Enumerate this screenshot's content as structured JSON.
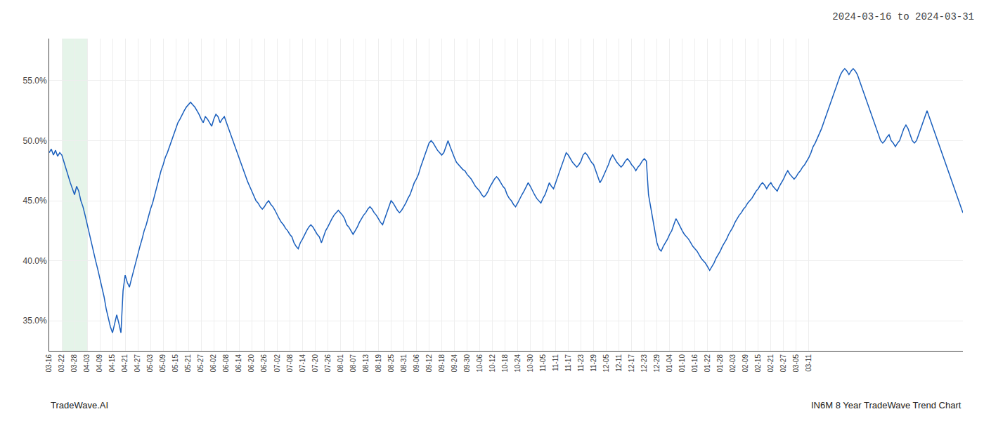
{
  "chart_data": {
    "type": "line",
    "title": "2024-03-16 to 2024-03-31",
    "annotations": [
      "TradeWave.AI",
      "IN6M 8 Year TradeWave Trend Chart"
    ],
    "categories": [
      "03-16",
      null,
      null,
      null,
      null,
      null,
      "03-22",
      null,
      null,
      null,
      null,
      null,
      "03-28",
      null,
      null,
      null,
      null,
      null,
      "04-03",
      null,
      null,
      null,
      null,
      null,
      "04-09",
      null,
      null,
      null,
      null,
      null,
      "04-15",
      null,
      null,
      null,
      null,
      null,
      "04-21",
      null,
      null,
      null,
      null,
      null,
      "04-27",
      null,
      null,
      null,
      null,
      null,
      "05-03",
      null,
      null,
      null,
      null,
      null,
      "05-09",
      null,
      null,
      null,
      null,
      null,
      "05-15",
      null,
      null,
      null,
      null,
      null,
      "05-21",
      null,
      null,
      null,
      null,
      null,
      "05-27",
      null,
      null,
      null,
      null,
      null,
      "06-02",
      null,
      null,
      null,
      null,
      null,
      "06-08",
      null,
      null,
      null,
      null,
      null,
      "06-14",
      null,
      null,
      null,
      null,
      null,
      "06-20",
      null,
      null,
      null,
      null,
      null,
      "06-26",
      null,
      null,
      null,
      null,
      null,
      "07-02",
      null,
      null,
      null,
      null,
      null,
      "07-08",
      null,
      null,
      null,
      null,
      null,
      "07-14",
      null,
      null,
      null,
      null,
      null,
      "07-20",
      null,
      null,
      null,
      null,
      null,
      "07-26",
      null,
      null,
      null,
      null,
      null,
      "08-01",
      null,
      null,
      null,
      null,
      null,
      "08-07",
      null,
      null,
      null,
      null,
      null,
      "08-13",
      null,
      null,
      null,
      null,
      null,
      "08-19",
      null,
      null,
      null,
      null,
      null,
      "08-25",
      null,
      null,
      null,
      null,
      null,
      "08-31",
      null,
      null,
      null,
      null,
      null,
      "09-06",
      null,
      null,
      null,
      null,
      null,
      "09-12",
      null,
      null,
      null,
      null,
      null,
      "09-18",
      null,
      null,
      null,
      null,
      null,
      "09-24",
      null,
      null,
      null,
      null,
      null,
      "09-30",
      null,
      null,
      null,
      null,
      null,
      "10-06",
      null,
      null,
      null,
      null,
      null,
      "10-12",
      null,
      null,
      null,
      null,
      null,
      "10-18",
      null,
      null,
      null,
      null,
      null,
      "10-24",
      null,
      null,
      null,
      null,
      null,
      "10-30",
      null,
      null,
      null,
      null,
      null,
      "11-05",
      null,
      null,
      null,
      null,
      null,
      "11-11",
      null,
      null,
      null,
      null,
      null,
      "11-17",
      null,
      null,
      null,
      null,
      null,
      "11-23",
      null,
      null,
      null,
      null,
      null,
      "11-29",
      null,
      null,
      null,
      null,
      null,
      "12-05",
      null,
      null,
      null,
      null,
      null,
      "12-11",
      null,
      null,
      null,
      null,
      null,
      "12-17",
      null,
      null,
      null,
      null,
      null,
      "12-23",
      null,
      null,
      null,
      null,
      null,
      "12-29",
      null,
      null,
      null,
      null,
      null,
      "01-04",
      null,
      null,
      null,
      null,
      null,
      "01-10",
      null,
      null,
      null,
      null,
      null,
      "01-16",
      null,
      null,
      null,
      null,
      null,
      "01-22",
      null,
      null,
      null,
      null,
      null,
      "01-28",
      null,
      null,
      null,
      null,
      null,
      "02-03",
      null,
      null,
      null,
      null,
      null,
      "02-09",
      null,
      null,
      null,
      null,
      null,
      "02-15",
      null,
      null,
      null,
      null,
      null,
      "02-21",
      null,
      null,
      null,
      null,
      null,
      "02-27",
      null,
      null,
      null,
      null,
      null,
      "03-05",
      null,
      null,
      null,
      null,
      null,
      "03-11",
      null,
      null,
      null,
      null,
      null,
      null,
      null,
      null,
      null,
      null,
      null,
      null,
      null,
      null,
      null,
      null,
      null,
      null,
      null,
      null,
      null,
      null,
      null,
      null,
      null,
      null,
      null,
      null,
      null,
      null,
      null,
      null,
      null,
      null,
      null,
      null,
      null,
      null,
      null,
      null,
      null,
      null,
      null,
      null,
      null,
      null,
      null,
      null,
      null,
      null,
      null,
      null,
      null,
      null,
      null,
      null,
      null,
      null,
      null,
      null,
      null,
      null,
      null,
      null,
      null,
      null,
      null,
      null,
      null,
      null,
      null,
      null,
      null
    ],
    "values": [
      0.49,
      0.493,
      0.488,
      0.492,
      0.487,
      0.49,
      0.488,
      0.482,
      0.476,
      0.471,
      0.465,
      0.46,
      0.455,
      0.462,
      0.458,
      0.45,
      0.445,
      0.438,
      0.43,
      0.422,
      0.415,
      0.408,
      0.4,
      0.393,
      0.385,
      0.378,
      0.37,
      0.36,
      0.352,
      0.345,
      0.34,
      0.348,
      0.355,
      0.348,
      0.34,
      0.375,
      0.388,
      0.382,
      0.378,
      0.385,
      0.392,
      0.398,
      0.405,
      0.412,
      0.418,
      0.425,
      0.43,
      0.437,
      0.443,
      0.448,
      0.455,
      0.462,
      0.468,
      0.475,
      0.48,
      0.486,
      0.49,
      0.495,
      0.5,
      0.505,
      0.51,
      0.515,
      0.518,
      0.522,
      0.525,
      0.528,
      0.53,
      0.532,
      0.53,
      0.528,
      0.525,
      0.522,
      0.518,
      0.515,
      0.52,
      0.518,
      0.515,
      0.512,
      0.518,
      0.522,
      0.52,
      0.515,
      0.518,
      0.52,
      0.515,
      0.51,
      0.505,
      0.5,
      0.495,
      0.49,
      0.485,
      0.48,
      0.476,
      0.47,
      0.466,
      0.462,
      0.458,
      0.455,
      0.45,
      0.448,
      0.445,
      0.443,
      0.445,
      0.448,
      0.45,
      0.447,
      0.445,
      0.442,
      0.438,
      0.435,
      0.432,
      0.43,
      0.427,
      0.425,
      0.422,
      0.42,
      0.415,
      0.412,
      0.41,
      0.415,
      0.418,
      0.422,
      0.425,
      0.428,
      0.43,
      0.428,
      0.425,
      0.422,
      0.42,
      0.415,
      0.42,
      0.425,
      0.428,
      0.432,
      0.435,
      0.438,
      0.44,
      0.442,
      0.44,
      0.438,
      0.435,
      0.43,
      0.428,
      0.425,
      0.422,
      0.425,
      0.428,
      0.432,
      0.435,
      0.438,
      0.44,
      0.443,
      0.445,
      0.443,
      0.44,
      0.438,
      0.435,
      0.432,
      0.43,
      0.435,
      0.44,
      0.445,
      0.45,
      0.448,
      0.445,
      0.442,
      0.44,
      0.442,
      0.445,
      0.448,
      0.452,
      0.455,
      0.46,
      0.465,
      0.468,
      0.472,
      0.478,
      0.483,
      0.488,
      0.492,
      0.498,
      0.5,
      0.498,
      0.495,
      0.492,
      0.49,
      0.488,
      0.49,
      0.495,
      0.5,
      0.495,
      0.49,
      0.486,
      0.482,
      0.48,
      0.478,
      0.476,
      0.475,
      0.472,
      0.47,
      0.468,
      0.465,
      0.462,
      0.46,
      0.458,
      0.455,
      0.453,
      0.455,
      0.458,
      0.462,
      0.465,
      0.468,
      0.47,
      0.468,
      0.465,
      0.462,
      0.46,
      0.455,
      0.452,
      0.45,
      0.447,
      0.445,
      0.448,
      0.452,
      0.455,
      0.458,
      0.462,
      0.465,
      0.462,
      0.458,
      0.455,
      0.452,
      0.45,
      0.448,
      0.452,
      0.455,
      0.46,
      0.465,
      0.462,
      0.46,
      0.465,
      0.47,
      0.475,
      0.48,
      0.485,
      0.49,
      0.488,
      0.485,
      0.482,
      0.48,
      0.478,
      0.48,
      0.483,
      0.488,
      0.49,
      0.488,
      0.485,
      0.482,
      0.48,
      0.475,
      0.47,
      0.465,
      0.468,
      0.472,
      0.475,
      0.48,
      0.485,
      0.488,
      0.485,
      0.482,
      0.48,
      0.478,
      0.48,
      0.483,
      0.485,
      0.483,
      0.48,
      0.478,
      0.475,
      0.478,
      0.48,
      0.483,
      0.485,
      0.483,
      0.455,
      0.445,
      0.435,
      0.425,
      0.415,
      0.41,
      0.408,
      0.412,
      0.415,
      0.418,
      0.422,
      0.425,
      0.43,
      0.435,
      0.432,
      0.428,
      0.425,
      0.422,
      0.42,
      0.418,
      0.415,
      0.412,
      0.41,
      0.408,
      0.405,
      0.402,
      0.4,
      0.398,
      0.395,
      0.392,
      0.395,
      0.398,
      0.402,
      0.405,
      0.408,
      0.412,
      0.415,
      0.418,
      0.422,
      0.425,
      0.428,
      0.432,
      0.435,
      0.438,
      0.44,
      0.443,
      0.445,
      0.448,
      0.45,
      0.452,
      0.455,
      0.458,
      0.46,
      0.463,
      0.465,
      0.463,
      0.46,
      0.463,
      0.465,
      0.462,
      0.46,
      0.458,
      0.462,
      0.465,
      0.468,
      0.472,
      0.475,
      0.472,
      0.47,
      0.468,
      0.47,
      0.473,
      0.475,
      0.478,
      0.48,
      0.483,
      0.486,
      0.49,
      0.495,
      0.498,
      0.502,
      0.505,
      0.51,
      0.515,
      0.52,
      0.525,
      0.53,
      0.535,
      0.54,
      0.545,
      0.55,
      0.555,
      0.558,
      0.56,
      0.558,
      0.555,
      0.558,
      0.56,
      0.558,
      0.555,
      0.55,
      0.545,
      0.54,
      0.535,
      0.53,
      0.525,
      0.52,
      0.515,
      0.51,
      0.505,
      0.5,
      0.498,
      0.5,
      0.503,
      0.505,
      0.5,
      0.498,
      0.495,
      0.498,
      0.5,
      0.505,
      0.51,
      0.513,
      0.51,
      0.505,
      0.5,
      0.498,
      0.5,
      0.505,
      0.51,
      0.515,
      0.52,
      0.525,
      0.52,
      0.515,
      0.51,
      0.505,
      0.5,
      0.495,
      0.49,
      0.485,
      0.48,
      0.475,
      0.47,
      0.465,
      0.46,
      0.455,
      0.45,
      0.445,
      0.44
    ],
    "color": "#1a5fbd",
    "ylim": [
      0.325,
      0.585
    ],
    "yticks": [
      {
        "value": 0.35,
        "label": "35.0%"
      },
      {
        "value": 0.4,
        "label": "40.0%"
      },
      {
        "value": 0.45,
        "label": "45.0%"
      },
      {
        "value": 0.5,
        "label": "50.0%"
      },
      {
        "value": 0.55,
        "label": "55.0%"
      }
    ],
    "grid": true,
    "highlight": {
      "from": "03-22",
      "to": "04-03",
      "color": "#d4edda"
    }
  }
}
